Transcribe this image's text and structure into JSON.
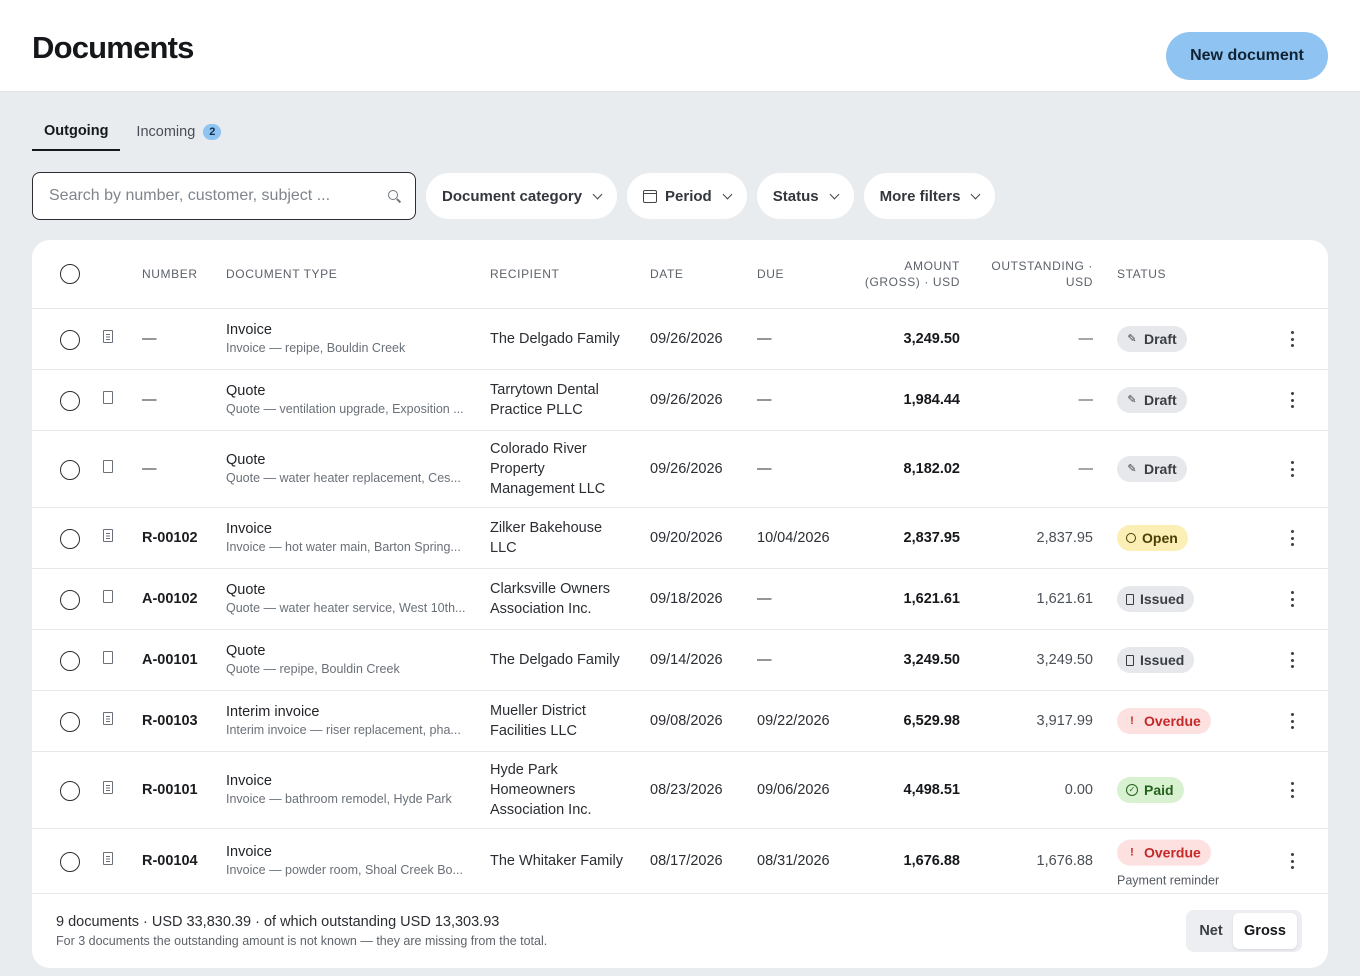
{
  "header": {
    "title": "Documents",
    "new_button": "New document"
  },
  "tabs": [
    {
      "label": "Outgoing",
      "active": true
    },
    {
      "label": "Incoming",
      "badge": "2"
    }
  ],
  "filters": {
    "search_placeholder": "Search by number, customer, subject ...",
    "category": "Document category",
    "period": "Period",
    "status": "Status",
    "more": "More filters"
  },
  "table": {
    "headers": {
      "number": "NUMBER",
      "doctype": "DOCUMENT TYPE",
      "recipient": "RECIPIENT",
      "date": "DATE",
      "due": "DUE",
      "amount_1": "AMOUNT",
      "amount_2": "(GROSS) · USD",
      "outstanding_1": "OUTSTANDING ·",
      "outstanding_2": "USD",
      "status": "STATUS"
    },
    "rows": [
      {
        "icon": "invoice-doc-icon",
        "number": "—",
        "type": "Invoice",
        "subject": "Invoice — repipe, Bouldin Creek",
        "recipient": [
          "The Delgado Family"
        ],
        "date": "09/26/2026",
        "due": "—",
        "amount": "3,249.50",
        "outstanding": "—",
        "status": "Draft",
        "status_kind": "draft"
      },
      {
        "icon": "quote-doc-icon",
        "number": "—",
        "type": "Quote",
        "subject": "Quote — ventilation upgrade, Exposition ...",
        "recipient": [
          "Tarrytown Dental",
          "Practice PLLC"
        ],
        "date": "09/26/2026",
        "due": "—",
        "amount": "1,984.44",
        "outstanding": "—",
        "status": "Draft",
        "status_kind": "draft"
      },
      {
        "icon": "quote-doc-icon",
        "number": "—",
        "type": "Quote",
        "subject": "Quote — water heater replacement, Ces...",
        "recipient": [
          "Colorado River",
          "Property",
          "Management LLC"
        ],
        "date": "09/26/2026",
        "due": "—",
        "amount": "8,182.02",
        "outstanding": "—",
        "status": "Draft",
        "status_kind": "draft"
      },
      {
        "icon": "invoice-doc-icon",
        "number": "R-00102",
        "type": "Invoice",
        "subject": "Invoice — hot water main, Barton Spring...",
        "recipient": [
          "Zilker Bakehouse",
          "LLC"
        ],
        "date": "09/20/2026",
        "due": "10/04/2026",
        "amount": "2,837.95",
        "outstanding": "2,837.95",
        "status": "Open",
        "status_kind": "open"
      },
      {
        "icon": "quote-doc-icon",
        "number": "A-00102",
        "type": "Quote",
        "subject": "Quote — water heater service, West 10th...",
        "recipient": [
          "Clarksville Owners",
          "Association Inc."
        ],
        "date": "09/18/2026",
        "due": "—",
        "amount": "1,621.61",
        "outstanding": "1,621.61",
        "status": "Issued",
        "status_kind": "issued"
      },
      {
        "icon": "quote-doc-icon",
        "number": "A-00101",
        "type": "Quote",
        "subject": "Quote — repipe, Bouldin Creek",
        "recipient": [
          "The Delgado Family"
        ],
        "date": "09/14/2026",
        "due": "—",
        "amount": "3,249.50",
        "outstanding": "3,249.50",
        "status": "Issued",
        "status_kind": "issued"
      },
      {
        "icon": "invoice-doc-icon",
        "number": "R-00103",
        "type": "Interim invoice",
        "subject": "Interim invoice — riser replacement, pha...",
        "recipient": [
          "Mueller District",
          "Facilities LLC"
        ],
        "date": "09/08/2026",
        "due": "09/22/2026",
        "amount": "6,529.98",
        "outstanding": "3,917.99",
        "status": "Overdue",
        "status_kind": "overdue"
      },
      {
        "icon": "invoice-doc-icon",
        "number": "R-00101",
        "type": "Invoice",
        "subject": "Invoice — bathroom remodel, Hyde Park",
        "recipient": [
          "Hyde Park",
          "Homeowners",
          "Association Inc."
        ],
        "date": "08/23/2026",
        "due": "09/06/2026",
        "amount": "4,498.51",
        "outstanding": "0.00",
        "status": "Paid",
        "status_kind": "paid"
      },
      {
        "icon": "invoice-doc-icon",
        "number": "R-00104",
        "type": "Invoice",
        "subject": "Invoice — powder room, Shoal Creek Bo...",
        "recipient": [
          "The Whitaker Family"
        ],
        "date": "08/17/2026",
        "due": "08/31/2026",
        "amount": "1,676.88",
        "outstanding": "1,676.88",
        "status": "Overdue",
        "status_kind": "overdue",
        "status_note": "Payment reminder"
      }
    ]
  },
  "footer": {
    "summary": "9 documents · USD 33,830.39 · of which outstanding USD 13,303.93",
    "note": "For 3 documents the outstanding amount is not known — they are missing from the total.",
    "toggle": {
      "net": "Net",
      "gross": "Gross",
      "selected": "Gross"
    }
  },
  "colors": {
    "accent": "#8ec3f2",
    "overdue": "#c42828",
    "paid": "#24611d",
    "open": "#fbefb5"
  }
}
